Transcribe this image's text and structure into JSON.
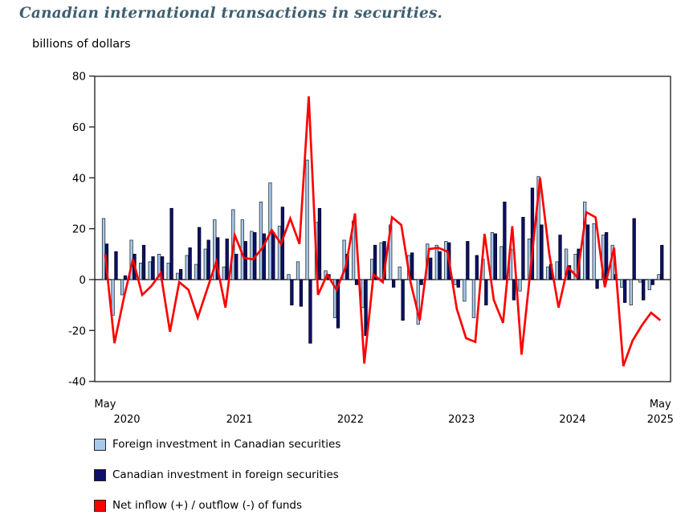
{
  "page_title": "Canadian international transactions in securities.",
  "y_axis_title": "billions of dollars",
  "legend": [
    {
      "label": "Foreign investment in Canadian securities",
      "color": "#a8c9ea"
    },
    {
      "label": "Canadian investment in foreign securities",
      "color": "#0d1168"
    },
    {
      "label": "Net inflow (+) / outflow (-) of funds",
      "color": "#ff0000"
    }
  ],
  "chart_data": {
    "type": "bar",
    "title": "Canadian international transactions in securities.",
    "ylabel": "billions of dollars",
    "ylim": [
      -40,
      80
    ],
    "yticks": [
      80,
      60,
      40,
      20,
      0,
      -20,
      -40
    ],
    "grid": false,
    "legend_position": "bottom-left",
    "x_start_label": {
      "line1": "May",
      "line2": "2020"
    },
    "x_end_label": {
      "line1": "May",
      "line2": "2025"
    },
    "x_year_labels": [
      "2021",
      "2022",
      "2023",
      "2024"
    ],
    "x": [
      "May 2020",
      "Jun 2020",
      "Jul 2020",
      "Aug 2020",
      "Sep 2020",
      "Oct 2020",
      "Nov 2020",
      "Dec 2020",
      "Jan 2021",
      "Feb 2021",
      "Mar 2021",
      "Apr 2021",
      "May 2021",
      "Jun 2021",
      "Jul 2021",
      "Aug 2021",
      "Sep 2021",
      "Oct 2021",
      "Nov 2021",
      "Dec 2021",
      "Jan 2022",
      "Feb 2022",
      "Mar 2022",
      "Apr 2022",
      "May 2022",
      "Jun 2022",
      "Jul 2022",
      "Aug 2022",
      "Sep 2022",
      "Oct 2022",
      "Nov 2022",
      "Dec 2022",
      "Jan 2023",
      "Feb 2023",
      "Mar 2023",
      "Apr 2023",
      "May 2023",
      "Jun 2023",
      "Jul 2023",
      "Aug 2023",
      "Sep 2023",
      "Oct 2023",
      "Nov 2023",
      "Dec 2023",
      "Jan 2024",
      "Feb 2024",
      "Mar 2024",
      "Apr 2024",
      "May 2024",
      "Jun 2024",
      "Jul 2024",
      "Aug 2024",
      "Sep 2024",
      "Oct 2024",
      "Nov 2024",
      "Dec 2024",
      "Jan 2025",
      "Feb 2025",
      "Mar 2025",
      "Apr 2025",
      "May 2025"
    ],
    "series": [
      {
        "name": "Foreign investment in Canadian securities",
        "kind": "bar",
        "color": "#a8c9ea",
        "values": [
          24,
          -14,
          -6,
          15.5,
          6.5,
          7,
          10,
          6.5,
          2.5,
          9.5,
          6,
          12,
          23.5,
          5,
          27.5,
          23.5,
          19,
          30.5,
          38,
          21,
          2,
          7,
          47,
          22.5,
          3.5,
          -15,
          15.5,
          23,
          -11,
          8,
          14.5,
          21.5,
          5,
          9.5,
          -17.5,
          14,
          13.5,
          15,
          -2,
          -8.5,
          -15,
          8,
          18.5,
          13,
          12,
          -4.5,
          16,
          40.5,
          5,
          7,
          12,
          10,
          30.5,
          22,
          17.5,
          13.5,
          -3,
          -10,
          -1,
          -4,
          2
        ]
      },
      {
        "name": "Canadian investment in foreign securities",
        "kind": "bar",
        "color": "#0d1168",
        "values": [
          14,
          11,
          1.5,
          10,
          13.5,
          9,
          9,
          28,
          4,
          12.5,
          20.5,
          15.5,
          16.5,
          16,
          10,
          15,
          18.5,
          18,
          18.5,
          28.5,
          -10,
          -10.5,
          -25,
          28,
          2,
          -19,
          10,
          -2,
          -22,
          13.5,
          15,
          -3,
          -16,
          10.5,
          -2,
          8.5,
          11,
          14.5,
          -3,
          15,
          9.5,
          -10,
          18,
          30.5,
          -8,
          24.5,
          36,
          21.5,
          6,
          17.5,
          5.5,
          12,
          21.5,
          -3.5,
          18.5,
          2,
          -9,
          24,
          -8,
          -2,
          13.5
        ]
      },
      {
        "name": "Net inflow (+) / outflow (-) of funds",
        "kind": "line",
        "color": "#ff0000",
        "values": [
          10,
          -25,
          -7.5,
          8,
          -6,
          -2.5,
          2.5,
          -20.5,
          -1,
          -4,
          -15,
          -4,
          7,
          -11,
          17.5,
          8.5,
          8,
          12.5,
          19.5,
          14,
          24,
          14,
          72,
          -6,
          2,
          -4,
          5,
          26,
          -33,
          2,
          -1,
          24.5,
          21.5,
          -1,
          -16,
          12,
          12.5,
          11,
          -11.5,
          -23,
          -24.5,
          18,
          -8,
          -17,
          21,
          -29.5,
          5,
          40,
          10,
          -11,
          5,
          1,
          26.5,
          24.5,
          -3,
          12.5,
          -34,
          -24,
          -18,
          -13,
          -16
        ]
      }
    ]
  }
}
